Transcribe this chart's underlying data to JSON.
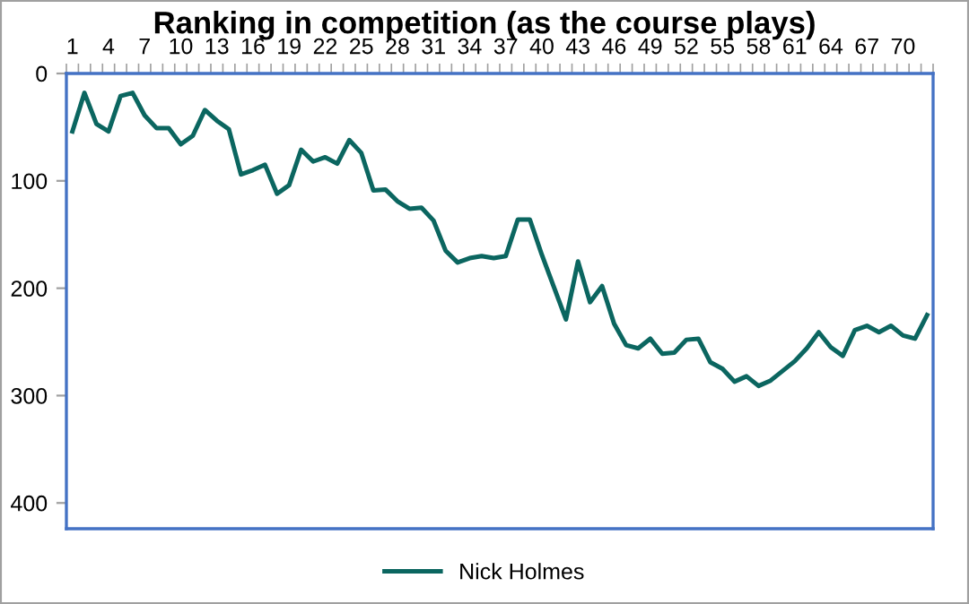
{
  "chart_data": {
    "type": "line",
    "title": "Ranking in competition (as the course plays)",
    "categories": [
      "1",
      null,
      null,
      "4",
      null,
      null,
      "7",
      null,
      null,
      "10",
      null,
      null,
      "13",
      null,
      null,
      "16",
      null,
      null,
      "19",
      null,
      null,
      "22",
      null,
      null,
      "25",
      null,
      null,
      "28",
      null,
      null,
      "31",
      null,
      null,
      "34",
      null,
      null,
      "37",
      null,
      null,
      "40",
      null,
      null,
      "43",
      null,
      null,
      "46",
      null,
      null,
      "49",
      null,
      null,
      "52",
      null,
      null,
      "55",
      null,
      null,
      "58",
      null,
      null,
      "61",
      null,
      null,
      "64",
      null,
      null,
      "67",
      null,
      null,
      "70",
      null,
      null
    ],
    "series": [
      {
        "name": "Nick Holmes",
        "color": "#0b6660",
        "values": [
          54,
          18,
          47,
          54,
          21,
          18,
          39,
          51,
          51,
          66,
          58,
          34,
          44,
          52,
          94,
          90,
          85,
          112,
          104,
          71,
          82,
          78,
          84,
          62,
          74,
          109,
          108,
          119,
          126,
          125,
          137,
          165,
          176,
          172,
          170,
          172,
          170,
          136,
          136,
          169,
          199,
          229,
          175,
          213,
          198,
          233,
          253,
          256,
          247,
          261,
          260,
          248,
          247,
          269,
          275,
          287,
          282,
          291,
          286,
          277,
          268,
          256,
          241,
          255,
          263,
          239,
          235,
          241,
          235,
          244,
          247,
          225
        ]
      }
    ],
    "ylim": [
      424,
      0
    ],
    "yticks": [
      0,
      100,
      200,
      300,
      400
    ],
    "grid": false,
    "legend": "bottom",
    "marker": "none",
    "line_style": "solid"
  }
}
